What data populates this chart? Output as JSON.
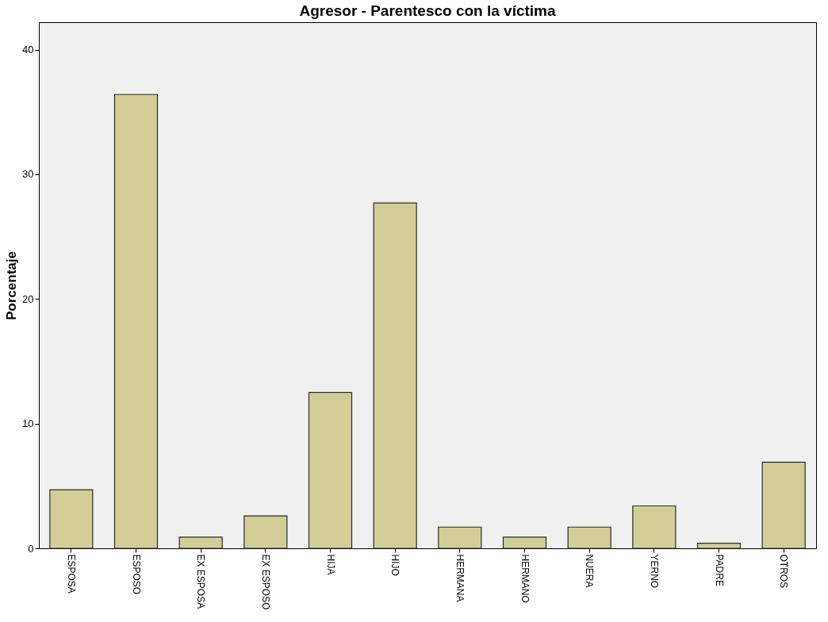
{
  "chart_data": {
    "type": "bar",
    "title": "Agresor - Parentesco con la víctima",
    "ylabel": "Porcentaje",
    "categories": [
      "ESPOSA",
      "ESPOSO",
      "EX ESPOSA",
      "EX ESPOSO",
      "HIJA",
      "HIJO",
      "HERMANA",
      "HERMANO",
      "NUERA",
      "YERNO",
      "PADRE",
      "OTROS"
    ],
    "values": [
      4.7,
      36.4,
      0.9,
      2.6,
      12.5,
      27.7,
      1.7,
      0.9,
      1.7,
      3.4,
      0.4,
      6.9
    ],
    "color": "#d3ce97",
    "ylim": [
      0,
      42.2
    ],
    "yticks": [
      0,
      10,
      20,
      30,
      40
    ],
    "grid": false
  }
}
